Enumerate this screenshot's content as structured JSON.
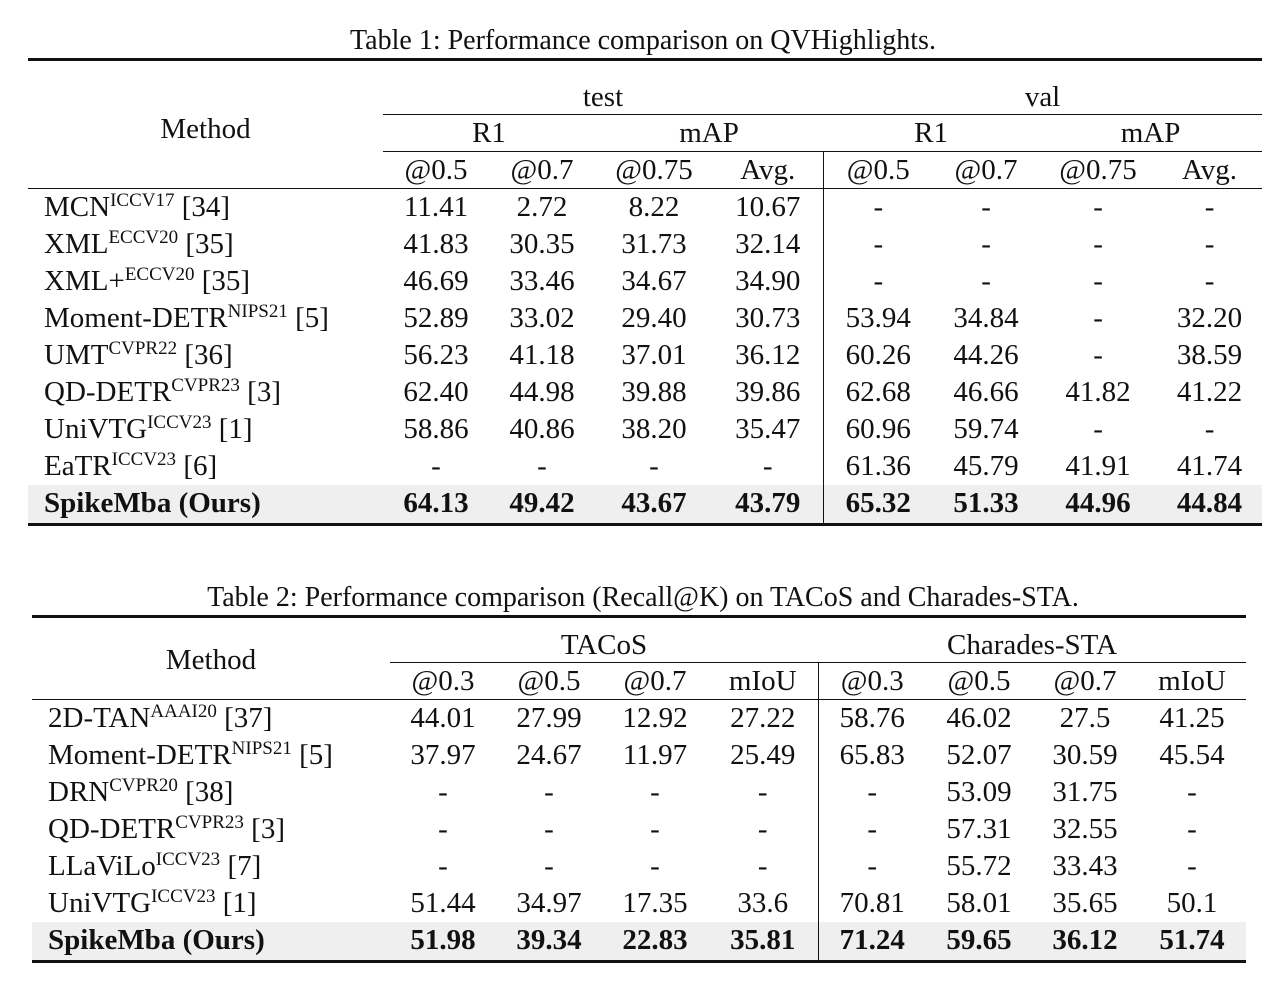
{
  "table1": {
    "caption": "Table 1: Performance comparison on QVHighlights.",
    "method_header": "Method",
    "groups": [
      "test",
      "val"
    ],
    "subgroups": [
      "R1",
      "mAP",
      "R1",
      "mAP"
    ],
    "columns": [
      "@0.5",
      "@0.7",
      "@0.75",
      "Avg.",
      "@0.5",
      "@0.7",
      "@0.75",
      "Avg."
    ],
    "rows": [
      {
        "name": "MCN",
        "venue": "ICCV17",
        "ref": "[34]",
        "values": [
          "11.41",
          "2.72",
          "8.22",
          "10.67",
          "-",
          "-",
          "-",
          "-"
        ]
      },
      {
        "name": "XML",
        "venue": "ECCV20",
        "ref": "[35]",
        "values": [
          "41.83",
          "30.35",
          "31.73",
          "32.14",
          "-",
          "-",
          "-",
          "-"
        ]
      },
      {
        "name": "XML+",
        "venue": "ECCV20",
        "ref": "[35]",
        "values": [
          "46.69",
          "33.46",
          "34.67",
          "34.90",
          "-",
          "-",
          "-",
          "-"
        ]
      },
      {
        "name": "Moment-DETR",
        "venue": "NIPS21",
        "ref": "[5]",
        "values": [
          "52.89",
          "33.02",
          "29.40",
          "30.73",
          "53.94",
          "34.84",
          "-",
          "32.20"
        ]
      },
      {
        "name": "UMT",
        "venue": "CVPR22",
        "ref": "[36]",
        "values": [
          "56.23",
          "41.18",
          "37.01",
          "36.12",
          "60.26",
          "44.26",
          "-",
          "38.59"
        ]
      },
      {
        "name": "QD-DETR",
        "venue": "CVPR23",
        "ref": "[3]",
        "values": [
          "62.40",
          "44.98",
          "39.88",
          "39.86",
          "62.68",
          "46.66",
          "41.82",
          "41.22"
        ]
      },
      {
        "name": "UniVTG",
        "venue": "ICCV23",
        "ref": "[1]",
        "values": [
          "58.86",
          "40.86",
          "38.20",
          "35.47",
          "60.96",
          "59.74",
          "-",
          "-"
        ]
      },
      {
        "name": "EaTR",
        "venue": "ICCV23",
        "ref": "[6]",
        "values": [
          "-",
          "-",
          "-",
          "-",
          "61.36",
          "45.79",
          "41.91",
          "41.74"
        ]
      }
    ],
    "best": {
      "name": "SpikeMba (Ours)",
      "values": [
        "64.13",
        "49.42",
        "43.67",
        "43.79",
        "65.32",
        "51.33",
        "44.96",
        "44.84"
      ]
    }
  },
  "table2": {
    "caption": "Table 2: Performance comparison (Recall@K) on TACoS and Charades-STA.",
    "method_header": "Method",
    "groups": [
      "TACoS",
      "Charades-STA"
    ],
    "columns": [
      "@0.3",
      "@0.5",
      "@0.7",
      "mIoU",
      "@0.3",
      "@0.5",
      "@0.7",
      "mIoU"
    ],
    "rows": [
      {
        "name": "2D-TAN",
        "venue": "AAAI20",
        "ref": "[37]",
        "values": [
          "44.01",
          "27.99",
          "12.92",
          "27.22",
          "58.76",
          "46.02",
          "27.5",
          "41.25"
        ]
      },
      {
        "name": "Moment-DETR",
        "venue": "NIPS21",
        "ref": "[5]",
        "values": [
          "37.97",
          "24.67",
          "11.97",
          "25.49",
          "65.83",
          "52.07",
          "30.59",
          "45.54"
        ]
      },
      {
        "name": "DRN",
        "venue": "CVPR20",
        "ref": "[38]",
        "values": [
          "-",
          "-",
          "-",
          "-",
          "-",
          "53.09",
          "31.75",
          "-"
        ]
      },
      {
        "name": "QD-DETR",
        "venue": "CVPR23",
        "ref": "[3]",
        "values": [
          "-",
          "-",
          "-",
          "-",
          "-",
          "57.31",
          "32.55",
          "-"
        ]
      },
      {
        "name": "LLaViLo",
        "venue": "ICCV23",
        "ref": "[7]",
        "values": [
          "-",
          "-",
          "-",
          "-",
          "-",
          "55.72",
          "33.43",
          "-"
        ]
      },
      {
        "name": "UniVTG",
        "venue": "ICCV23",
        "ref": "[1]",
        "values": [
          "51.44",
          "34.97",
          "17.35",
          "33.6",
          "70.81",
          "58.01",
          "35.65",
          "50.1"
        ]
      }
    ],
    "best": {
      "name": "SpikeMba (Ours)",
      "values": [
        "51.98",
        "39.34",
        "22.83",
        "35.81",
        "71.24",
        "59.65",
        "36.12",
        "51.74"
      ]
    }
  }
}
